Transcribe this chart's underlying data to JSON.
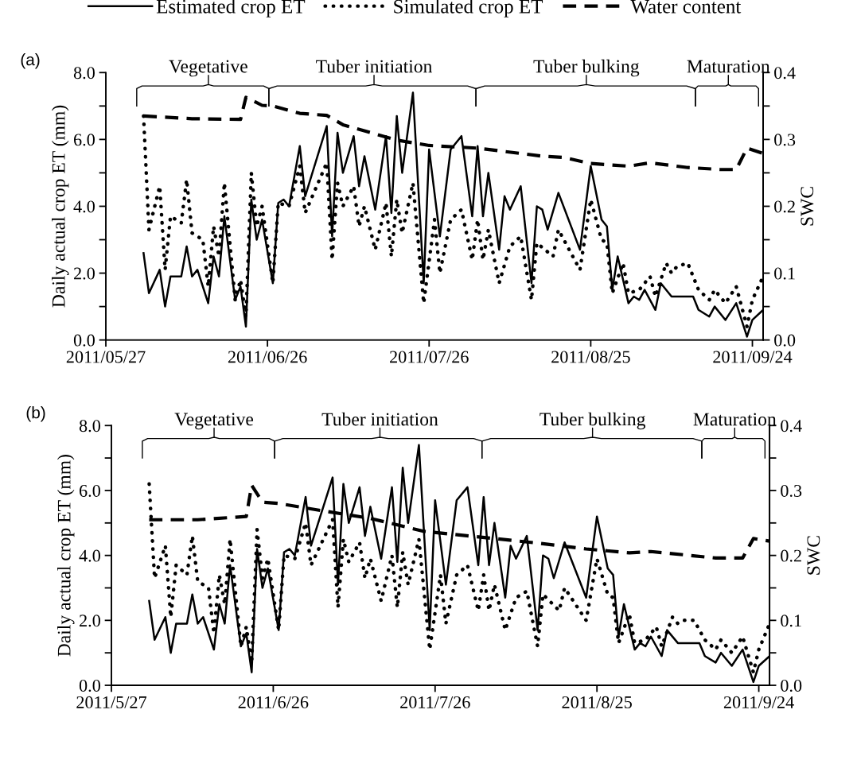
{
  "chart_data": [
    {
      "type": "line",
      "ylabel": "Daily actual crop ET (mm)",
      "y2label": "SWC",
      "legend": "top",
      "grid": false,
      "marker": "none",
      "xlim": [
        "2011-05-27",
        "2011-09-26"
      ],
      "xticks": [
        {
          "value": "2011-05-27",
          "label": "2011/05/27"
        },
        {
          "value": "2011-06-26",
          "label": "2011/06/26"
        },
        {
          "value": "2011-07-26",
          "label": "2011/07/26"
        },
        {
          "value": "2011-08-25",
          "label": "2011/08/25"
        },
        {
          "value": "2011-09-24",
          "label": "2011/09/24"
        }
      ],
      "ylim": [
        0,
        8
      ],
      "yticks": [
        {
          "value": 0,
          "label": "0.0"
        },
        {
          "value": 1,
          "label": null
        },
        {
          "value": 2,
          "label": "2.0"
        },
        {
          "value": 3,
          "label": null
        },
        {
          "value": 4,
          "label": "4.0"
        },
        {
          "value": 5,
          "label": null
        },
        {
          "value": 6,
          "label": "6.0"
        },
        {
          "value": 7,
          "label": null
        },
        {
          "value": 8,
          "label": "8.0"
        }
      ],
      "y2lim": [
        0,
        0.4
      ],
      "y2ticks": [
        {
          "value": 0,
          "label": "0.0"
        },
        {
          "value": 0.05,
          "label": null
        },
        {
          "value": 0.1,
          "label": "0.1"
        },
        {
          "value": 0.15,
          "label": null
        },
        {
          "value": 0.2,
          "label": "0.2"
        },
        {
          "value": 0.25,
          "label": null
        },
        {
          "value": 0.3,
          "label": "0.3"
        },
        {
          "value": 0.35,
          "label": null
        },
        {
          "value": 0.4,
          "label": "0.4"
        }
      ],
      "annotations": [
        "(a)",
        "Vegetative",
        "Tuber initiation",
        "Tuber bulking",
        "Maturation"
      ],
      "series": [
        {
          "name": "Estimated crop ET",
          "color": "#000000",
          "line_style": "solid",
          "x": [
            "2011-06-03",
            "2011-06-04",
            "2011-06-06",
            "2011-06-07",
            "2011-06-08",
            "2011-06-10",
            "2011-06-11",
            "2011-06-12",
            "2011-06-13",
            "2011-06-15",
            "2011-06-16",
            "2011-06-17",
            "2011-06-18",
            "2011-06-20",
            "2011-06-21",
            "2011-06-22",
            "2011-06-23",
            "2011-06-24",
            "2011-06-25",
            "2011-06-27",
            "2011-06-28",
            "2011-06-29",
            "2011-06-30",
            "2011-07-02",
            "2011-07-03",
            "2011-07-07",
            "2011-07-08",
            "2011-07-09",
            "2011-07-10",
            "2011-07-12",
            "2011-07-13",
            "2011-07-14",
            "2011-07-16",
            "2011-07-18",
            "2011-07-19",
            "2011-07-20",
            "2011-07-21",
            "2011-07-23",
            "2011-07-25",
            "2011-07-26",
            "2011-07-28",
            "2011-07-30",
            "2011-08-01",
            "2011-08-03",
            "2011-08-04",
            "2011-08-05",
            "2011-08-06",
            "2011-08-08",
            "2011-08-09",
            "2011-08-10",
            "2011-08-12",
            "2011-08-14",
            "2011-08-15",
            "2011-08-16",
            "2011-08-17",
            "2011-08-19",
            "2011-08-23",
            "2011-08-25",
            "2011-08-27",
            "2011-08-28",
            "2011-08-29",
            "2011-08-30",
            "2011-09-01",
            "2011-09-02",
            "2011-09-03",
            "2011-09-04",
            "2011-09-06",
            "2011-09-07",
            "2011-09-09",
            "2011-09-10",
            "2011-09-11",
            "2011-09-13",
            "2011-09-14",
            "2011-09-16",
            "2011-09-17",
            "2011-09-19",
            "2011-09-21",
            "2011-09-23",
            "2011-09-24",
            "2011-09-26"
          ],
          "values": [
            2.6,
            1.4,
            2.1,
            1.0,
            1.9,
            1.9,
            2.8,
            1.9,
            2.1,
            1.1,
            2.5,
            1.9,
            3.7,
            1.2,
            1.6,
            0.4,
            4.2,
            3.0,
            3.6,
            1.7,
            4.1,
            4.2,
            4.0,
            5.8,
            4.3,
            6.4,
            3.1,
            6.2,
            5.0,
            6.1,
            4.6,
            5.5,
            3.9,
            6.1,
            3.8,
            6.7,
            5.0,
            7.4,
            1.7,
            5.7,
            3.1,
            5.7,
            6.1,
            3.7,
            5.8,
            3.7,
            5.0,
            2.7,
            4.3,
            3.9,
            4.6,
            1.7,
            4.0,
            3.9,
            3.3,
            4.4,
            2.7,
            5.2,
            3.6,
            3.4,
            1.5,
            2.5,
            1.1,
            1.3,
            1.2,
            1.5,
            0.9,
            1.7,
            1.3,
            1.3,
            1.3,
            1.3,
            0.9,
            0.7,
            1.0,
            0.6,
            1.1,
            0.1,
            0.6,
            0.9
          ]
        },
        {
          "name": "Simulated crop ET",
          "color": "#000000",
          "line_style": "dotted",
          "x": [
            "2011-06-03",
            "2011-06-04",
            "2011-06-06",
            "2011-06-07",
            "2011-06-08",
            "2011-06-10",
            "2011-06-11",
            "2011-06-12",
            "2011-06-14",
            "2011-06-15",
            "2011-06-16",
            "2011-06-17",
            "2011-06-18",
            "2011-06-20",
            "2011-06-21",
            "2011-06-22",
            "2011-06-23",
            "2011-06-24",
            "2011-06-25",
            "2011-06-27",
            "2011-06-28",
            "2011-06-30",
            "2011-07-02",
            "2011-07-03",
            "2011-07-07",
            "2011-07-08",
            "2011-07-09",
            "2011-07-10",
            "2011-07-12",
            "2011-07-13",
            "2011-07-14",
            "2011-07-16",
            "2011-07-18",
            "2011-07-19",
            "2011-07-20",
            "2011-07-21",
            "2011-07-23",
            "2011-07-25",
            "2011-07-27",
            "2011-07-28",
            "2011-07-30",
            "2011-08-01",
            "2011-08-03",
            "2011-08-04",
            "2011-08-05",
            "2011-08-06",
            "2011-08-08",
            "2011-08-10",
            "2011-08-12",
            "2011-08-14",
            "2011-08-15",
            "2011-08-18",
            "2011-08-19",
            "2011-08-23",
            "2011-08-25",
            "2011-08-27",
            "2011-08-28",
            "2011-08-29",
            "2011-08-31",
            "2011-09-01",
            "2011-09-03",
            "2011-09-05",
            "2011-09-06",
            "2011-09-08",
            "2011-09-09",
            "2011-09-10",
            "2011-09-12",
            "2011-09-14",
            "2011-09-16",
            "2011-09-17",
            "2011-09-19",
            "2011-09-21",
            "2011-09-23",
            "2011-09-24",
            "2011-09-26"
          ],
          "values": [
            6.7,
            3.3,
            4.6,
            2.1,
            3.7,
            3.5,
            4.8,
            3.2,
            3.0,
            1.6,
            3.4,
            2.5,
            4.7,
            1.2,
            1.8,
            0.7,
            5.0,
            3.4,
            4.0,
            1.7,
            4.1,
            4.0,
            5.2,
            3.8,
            5.3,
            2.4,
            4.7,
            4.0,
            4.6,
            3.4,
            4.0,
            2.7,
            4.1,
            2.5,
            4.2,
            3.2,
            4.7,
            1.1,
            3.6,
            2.0,
            3.6,
            3.9,
            2.4,
            3.6,
            2.4,
            3.3,
            1.7,
            2.8,
            3.1,
            1.2,
            2.9,
            2.5,
            3.3,
            2.1,
            4.2,
            3.0,
            2.9,
            1.4,
            2.3,
            1.4,
            1.5,
            1.9,
            1.3,
            2.3,
            2.0,
            2.2,
            2.3,
            1.5,
            1.2,
            1.5,
            1.1,
            1.6,
            0.4,
            1.2,
            1.9
          ]
        },
        {
          "name": "Water content",
          "color": "#000000",
          "line_style": "dashed",
          "axis": "y2",
          "x": [
            "2011-06-03",
            "2011-06-12",
            "2011-06-21",
            "2011-06-22",
            "2011-06-25",
            "2011-06-27",
            "2011-07-02",
            "2011-07-07",
            "2011-07-10",
            "2011-07-20",
            "2011-07-26",
            "2011-08-04",
            "2011-08-16",
            "2011-08-20",
            "2011-08-25",
            "2011-09-01",
            "2011-09-05",
            "2011-09-12",
            "2011-09-18",
            "2011-09-21",
            "2011-09-23",
            "2011-09-26"
          ],
          "values": [
            0.335,
            0.331,
            0.33,
            0.363,
            0.351,
            0.35,
            0.339,
            0.336,
            0.322,
            0.299,
            0.291,
            0.287,
            0.275,
            0.273,
            0.264,
            0.26,
            0.265,
            0.258,
            0.255,
            0.255,
            0.287,
            0.279
          ]
        }
      ]
    },
    {
      "type": "line",
      "ylabel": "Daily actual crop ET (mm)",
      "y2label": "SWC",
      "grid": false,
      "marker": "none",
      "xlim": [
        "2011-05-27",
        "2011-09-26"
      ],
      "xticks": [
        {
          "value": "2011-05-27",
          "label": "2011/5/27"
        },
        {
          "value": "2011-06-26",
          "label": "2011/6/26"
        },
        {
          "value": "2011-07-26",
          "label": "2011/7/26"
        },
        {
          "value": "2011-08-25",
          "label": "2011/8/25"
        },
        {
          "value": "2011-09-24",
          "label": "2011/9/24"
        }
      ],
      "ylim": [
        0,
        8
      ],
      "yticks": [
        {
          "value": 0,
          "label": "0.0"
        },
        {
          "value": 1,
          "label": null
        },
        {
          "value": 2,
          "label": "2.0"
        },
        {
          "value": 3,
          "label": null
        },
        {
          "value": 4,
          "label": "4.0"
        },
        {
          "value": 5,
          "label": null
        },
        {
          "value": 6,
          "label": "6.0"
        },
        {
          "value": 7,
          "label": null
        },
        {
          "value": 8,
          "label": "8.0"
        }
      ],
      "y2lim": [
        0,
        0.4
      ],
      "y2ticks": [
        {
          "value": 0,
          "label": "0.0"
        },
        {
          "value": 0.05,
          "label": null
        },
        {
          "value": 0.1,
          "label": "0.1"
        },
        {
          "value": 0.15,
          "label": null
        },
        {
          "value": 0.2,
          "label": "0.2"
        },
        {
          "value": 0.25,
          "label": null
        },
        {
          "value": 0.3,
          "label": "0.3"
        },
        {
          "value": 0.35,
          "label": null
        },
        {
          "value": 0.4,
          "label": "0.4"
        }
      ],
      "annotations": [
        "(b)",
        "Vegetative",
        "Tuber initiation",
        "Tuber bulking",
        "Maturation"
      ],
      "series": [
        {
          "color": "#000000",
          "line_style": "solid",
          "x": [
            "2011-06-03",
            "2011-06-04",
            "2011-06-06",
            "2011-06-07",
            "2011-06-08",
            "2011-06-10",
            "2011-06-11",
            "2011-06-12",
            "2011-06-13",
            "2011-06-15",
            "2011-06-16",
            "2011-06-17",
            "2011-06-18",
            "2011-06-20",
            "2011-06-21",
            "2011-06-22",
            "2011-06-23",
            "2011-06-24",
            "2011-06-25",
            "2011-06-27",
            "2011-06-28",
            "2011-06-29",
            "2011-06-30",
            "2011-07-02",
            "2011-07-03",
            "2011-07-07",
            "2011-07-08",
            "2011-07-09",
            "2011-07-10",
            "2011-07-12",
            "2011-07-13",
            "2011-07-14",
            "2011-07-16",
            "2011-07-18",
            "2011-07-19",
            "2011-07-20",
            "2011-07-21",
            "2011-07-23",
            "2011-07-25",
            "2011-07-26",
            "2011-07-28",
            "2011-07-30",
            "2011-08-01",
            "2011-08-03",
            "2011-08-04",
            "2011-08-05",
            "2011-08-06",
            "2011-08-08",
            "2011-08-09",
            "2011-08-10",
            "2011-08-12",
            "2011-08-14",
            "2011-08-15",
            "2011-08-16",
            "2011-08-17",
            "2011-08-19",
            "2011-08-23",
            "2011-08-25",
            "2011-08-27",
            "2011-08-28",
            "2011-08-29",
            "2011-08-30",
            "2011-09-01",
            "2011-09-02",
            "2011-09-03",
            "2011-09-04",
            "2011-09-06",
            "2011-09-07",
            "2011-09-09",
            "2011-09-10",
            "2011-09-11",
            "2011-09-13",
            "2011-09-14",
            "2011-09-16",
            "2011-09-17",
            "2011-09-19",
            "2011-09-21",
            "2011-09-23",
            "2011-09-24",
            "2011-09-26"
          ],
          "values": [
            2.6,
            1.4,
            2.1,
            1.0,
            1.9,
            1.9,
            2.8,
            1.9,
            2.1,
            1.1,
            2.5,
            1.9,
            3.7,
            1.2,
            1.6,
            0.4,
            4.2,
            3.0,
            3.6,
            1.7,
            4.1,
            4.2,
            4.0,
            5.8,
            4.3,
            6.4,
            3.1,
            6.2,
            5.0,
            6.1,
            4.6,
            5.5,
            3.9,
            6.1,
            3.8,
            6.7,
            5.0,
            7.4,
            1.7,
            5.7,
            3.1,
            5.7,
            6.1,
            3.7,
            5.8,
            3.7,
            5.0,
            2.7,
            4.3,
            3.9,
            4.6,
            1.7,
            4.0,
            3.9,
            3.3,
            4.4,
            2.7,
            5.2,
            3.6,
            3.4,
            1.5,
            2.5,
            1.1,
            1.3,
            1.2,
            1.5,
            0.9,
            1.7,
            1.3,
            1.3,
            1.3,
            1.3,
            0.9,
            0.7,
            1.0,
            0.6,
            1.1,
            0.1,
            0.6,
            0.9
          ]
        },
        {
          "color": "#000000",
          "line_style": "dotted",
          "x": [
            "2011-06-03",
            "2011-06-04",
            "2011-06-06",
            "2011-06-07",
            "2011-06-08",
            "2011-06-10",
            "2011-06-11",
            "2011-06-12",
            "2011-06-14",
            "2011-06-15",
            "2011-06-16",
            "2011-06-17",
            "2011-06-18",
            "2011-06-20",
            "2011-06-21",
            "2011-06-22",
            "2011-06-23",
            "2011-06-24",
            "2011-06-25",
            "2011-06-27",
            "2011-06-28",
            "2011-06-30",
            "2011-07-02",
            "2011-07-03",
            "2011-07-07",
            "2011-07-08",
            "2011-07-09",
            "2011-07-10",
            "2011-07-12",
            "2011-07-13",
            "2011-07-14",
            "2011-07-16",
            "2011-07-18",
            "2011-07-19",
            "2011-07-20",
            "2011-07-21",
            "2011-07-23",
            "2011-07-25",
            "2011-07-27",
            "2011-07-28",
            "2011-07-30",
            "2011-08-01",
            "2011-08-03",
            "2011-08-04",
            "2011-08-05",
            "2011-08-06",
            "2011-08-08",
            "2011-08-10",
            "2011-08-12",
            "2011-08-14",
            "2011-08-15",
            "2011-08-18",
            "2011-08-19",
            "2011-08-23",
            "2011-08-25",
            "2011-08-27",
            "2011-08-28",
            "2011-08-29",
            "2011-08-31",
            "2011-09-01",
            "2011-09-03",
            "2011-09-05",
            "2011-09-06",
            "2011-09-08",
            "2011-09-09",
            "2011-09-10",
            "2011-09-12",
            "2011-09-14",
            "2011-09-16",
            "2011-09-17",
            "2011-09-19",
            "2011-09-21",
            "2011-09-23",
            "2011-09-24",
            "2011-09-26"
          ],
          "values": [
            6.2,
            3.3,
            4.3,
            2.1,
            3.7,
            3.4,
            4.6,
            3.2,
            3.0,
            1.6,
            3.4,
            2.5,
            4.5,
            1.2,
            1.8,
            0.7,
            4.8,
            3.3,
            3.9,
            1.7,
            4.0,
            3.9,
            5.0,
            3.7,
            5.1,
            2.4,
            4.5,
            3.8,
            4.4,
            3.3,
            3.9,
            2.6,
            4.0,
            2.4,
            4.1,
            3.1,
            4.5,
            1.1,
            3.4,
            1.9,
            3.4,
            3.7,
            2.3,
            3.4,
            2.3,
            3.1,
            1.7,
            2.7,
            2.9,
            1.2,
            2.8,
            2.3,
            3.0,
            2.0,
            3.9,
            2.8,
            2.7,
            1.3,
            2.2,
            1.3,
            1.4,
            1.8,
            1.2,
            2.1,
            1.9,
            2.0,
            2.0,
            1.4,
            1.1,
            1.4,
            1.0,
            1.5,
            0.4,
            1.1,
            1.9
          ]
        },
        {
          "color": "#000000",
          "line_style": "dashed",
          "axis": "y2",
          "x": [
            "2011-06-03",
            "2011-06-12",
            "2011-06-21",
            "2011-06-22",
            "2011-06-24",
            "2011-06-27",
            "2011-07-05",
            "2011-07-14",
            "2011-07-24",
            "2011-08-06",
            "2011-08-14",
            "2011-08-23",
            "2011-08-31",
            "2011-09-04",
            "2011-09-16",
            "2011-09-21",
            "2011-09-23",
            "2011-09-26"
          ],
          "values": [
            0.255,
            0.255,
            0.26,
            0.308,
            0.282,
            0.28,
            0.269,
            0.257,
            0.237,
            0.226,
            0.219,
            0.21,
            0.204,
            0.206,
            0.196,
            0.196,
            0.226,
            0.222
          ]
        }
      ]
    }
  ]
}
